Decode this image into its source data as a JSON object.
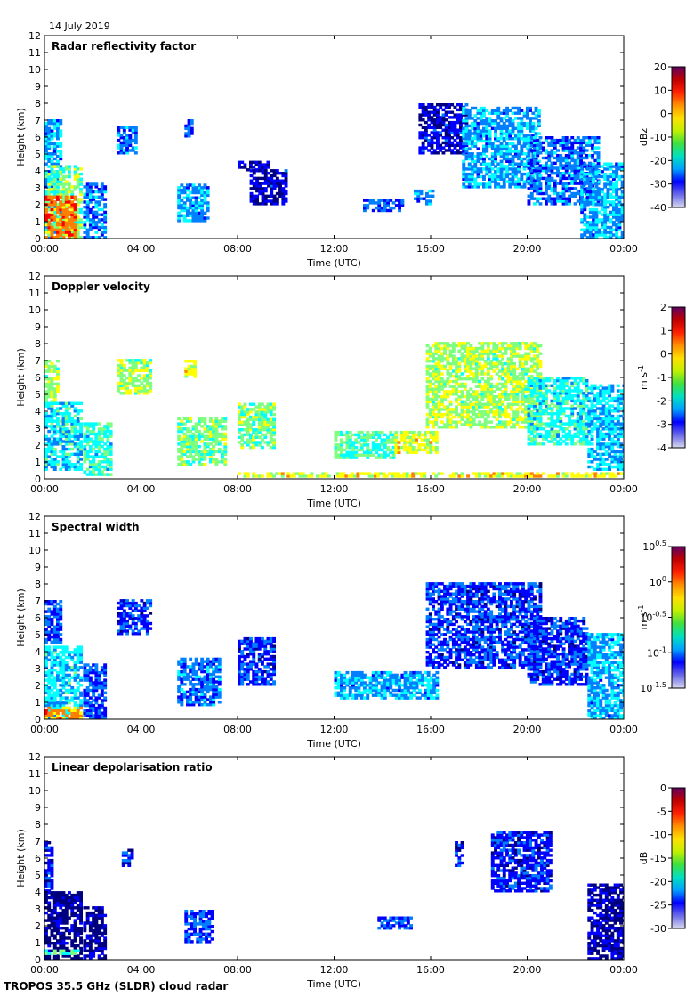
{
  "date_label": "14 July 2019",
  "footer_label": "TROPOS 35.5 GHz (SLDR) cloud radar",
  "colors": {
    "jet": [
      "#00007f",
      "#0000ff",
      "#007fff",
      "#00ffff",
      "#7fff7f",
      "#ffff00",
      "#ff7f00",
      "#ff0000",
      "#7f0000"
    ],
    "colorbar_stops": [
      "#d8d8f0",
      "#6a6ae8",
      "#0000ff",
      "#00a0ff",
      "#00e0c0",
      "#40e040",
      "#c0f000",
      "#ffe000",
      "#ff9000",
      "#ff2000",
      "#c00000",
      "#600060"
    ],
    "haze": "#d0d0d0"
  },
  "chart_data": [
    {
      "type": "heatmap",
      "title": "Radar reflectivity factor",
      "xlabel": "Time (UTC)",
      "ylabel": "Height (km)",
      "xlim": [
        0,
        24
      ],
      "ylim": [
        0,
        12
      ],
      "x_ticks": [
        "00:00",
        "04:00",
        "08:00",
        "12:00",
        "16:00",
        "20:00",
        "00:00"
      ],
      "y_ticks": [
        "0",
        "1",
        "2",
        "3",
        "4",
        "5",
        "6",
        "7",
        "8",
        "9",
        "10",
        "11",
        "12"
      ],
      "colorbar": {
        "label": "dBz",
        "min": -40,
        "max": 20,
        "ticks": [
          "20",
          "10",
          "0",
          "-10",
          "-20",
          "-30",
          "-40"
        ]
      },
      "echoes": [
        {
          "t0": 0.0,
          "t1": 0.7,
          "h0": 0.0,
          "h1": 7.0,
          "v": 0.35
        },
        {
          "t0": 0.0,
          "t1": 1.5,
          "h0": 0.0,
          "h1": 4.3,
          "v": 0.55
        },
        {
          "t0": 0.0,
          "t1": 1.3,
          "h0": 0.0,
          "h1": 2.5,
          "v": 0.85
        },
        {
          "t0": 1.6,
          "t1": 2.5,
          "h0": 0.0,
          "h1": 3.2,
          "v": 0.3
        },
        {
          "t0": 3.0,
          "t1": 3.8,
          "h0": 5.0,
          "h1": 6.6,
          "v": 0.3
        },
        {
          "t0": 5.8,
          "t1": 6.1,
          "h0": 6.0,
          "h1": 7.0,
          "v": 0.25
        },
        {
          "t0": 5.5,
          "t1": 6.8,
          "h0": 1.0,
          "h1": 3.2,
          "v": 0.35
        },
        {
          "t0": 8.0,
          "t1": 9.2,
          "h0": 4.0,
          "h1": 4.5,
          "v": 0.15
        },
        {
          "t0": 8.5,
          "t1": 10.0,
          "h0": 2.0,
          "h1": 4.0,
          "v": 0.15
        },
        {
          "t0": 13.2,
          "t1": 14.8,
          "h0": 1.6,
          "h1": 2.3,
          "v": 0.25
        },
        {
          "t0": 15.3,
          "t1": 16.1,
          "h0": 2.0,
          "h1": 2.8,
          "v": 0.3
        },
        {
          "t0": 15.5,
          "t1": 17.5,
          "h0": 5.0,
          "h1": 8.0,
          "v": 0.15
        },
        {
          "t0": 17.3,
          "t1": 20.5,
          "h0": 3.0,
          "h1": 7.8,
          "v": 0.35
        },
        {
          "t0": 20.0,
          "t1": 23.0,
          "h0": 2.0,
          "h1": 6.0,
          "v": 0.3
        },
        {
          "t0": 22.2,
          "t1": 24.0,
          "h0": 0.0,
          "h1": 4.5,
          "v": 0.35
        }
      ]
    },
    {
      "type": "heatmap",
      "title": "Doppler velocity",
      "xlabel": "Time (UTC)",
      "ylabel": "Height (km)",
      "xlim": [
        0,
        24
      ],
      "ylim": [
        0,
        12
      ],
      "x_ticks": [
        "00:00",
        "04:00",
        "08:00",
        "12:00",
        "16:00",
        "20:00",
        "00:00"
      ],
      "y_ticks": [
        "0",
        "1",
        "2",
        "3",
        "4",
        "5",
        "6",
        "7",
        "8",
        "9",
        "10",
        "11",
        "12"
      ],
      "colorbar": {
        "label": "m s-1",
        "min": -4,
        "max": 2,
        "ticks": [
          "2",
          "1",
          "0",
          "-1",
          "-2",
          "-3",
          "-4"
        ]
      },
      "echoes": [
        {
          "t0": 0.0,
          "t1": 0.6,
          "h0": 4.5,
          "h1": 7.0,
          "v": 0.6
        },
        {
          "t0": 0.0,
          "t1": 1.5,
          "h0": 0.5,
          "h1": 4.5,
          "v": 0.42
        },
        {
          "t0": 1.6,
          "t1": 2.7,
          "h0": 0.2,
          "h1": 3.2,
          "v": 0.48
        },
        {
          "t0": 3.0,
          "t1": 4.4,
          "h0": 5.0,
          "h1": 7.0,
          "v": 0.58
        },
        {
          "t0": 5.8,
          "t1": 6.2,
          "h0": 6.0,
          "h1": 7.0,
          "v": 0.65
        },
        {
          "t0": 5.5,
          "t1": 7.5,
          "h0": 0.8,
          "h1": 3.5,
          "v": 0.55
        },
        {
          "t0": 8.0,
          "t1": 9.5,
          "h0": 1.8,
          "h1": 4.5,
          "v": 0.55
        },
        {
          "t0": 12.0,
          "t1": 14.5,
          "h0": 1.2,
          "h1": 2.8,
          "v": 0.5
        },
        {
          "t0": 14.5,
          "t1": 16.2,
          "h0": 1.5,
          "h1": 2.8,
          "v": 0.65
        },
        {
          "t0": 15.8,
          "t1": 20.5,
          "h0": 3.0,
          "h1": 8.0,
          "v": 0.6
        },
        {
          "t0": 20.0,
          "t1": 22.5,
          "h0": 2.0,
          "h1": 6.0,
          "v": 0.45
        },
        {
          "t0": 22.5,
          "t1": 24.0,
          "h0": 0.5,
          "h1": 5.5,
          "v": 0.38
        },
        {
          "t0": 8.0,
          "t1": 24.0,
          "h0": 0.1,
          "h1": 0.35,
          "v": 0.68
        }
      ]
    },
    {
      "type": "heatmap",
      "title": "Spectral width",
      "xlabel": "Time (UTC)",
      "ylabel": "Height (km)",
      "xlim": [
        0,
        24
      ],
      "ylim": [
        0,
        12
      ],
      "x_ticks": [
        "00:00",
        "04:00",
        "08:00",
        "12:00",
        "16:00",
        "20:00",
        "00:00"
      ],
      "y_ticks": [
        "0",
        "1",
        "2",
        "3",
        "4",
        "5",
        "6",
        "7",
        "8",
        "9",
        "10",
        "11",
        "12"
      ],
      "colorbar": {
        "label": "m s-1",
        "min": -1.5,
        "max": 0.5,
        "ticks": [
          "10^0.5",
          "10^0",
          "10^-0.5",
          "10^-1",
          "10^-1.5"
        ]
      },
      "echoes": [
        {
          "t0": 0.0,
          "t1": 0.7,
          "h0": 4.5,
          "h1": 7.0,
          "v": 0.25
        },
        {
          "t0": 0.0,
          "t1": 1.5,
          "h0": 0.0,
          "h1": 4.3,
          "v": 0.4
        },
        {
          "t0": 0.0,
          "t1": 1.5,
          "h0": 0.0,
          "h1": 0.7,
          "v": 0.78
        },
        {
          "t0": 1.6,
          "t1": 2.5,
          "h0": 0.0,
          "h1": 3.2,
          "v": 0.25
        },
        {
          "t0": 3.0,
          "t1": 4.4,
          "h0": 5.0,
          "h1": 7.0,
          "v": 0.22
        },
        {
          "t0": 5.5,
          "t1": 7.2,
          "h0": 0.8,
          "h1": 3.5,
          "v": 0.3
        },
        {
          "t0": 8.0,
          "t1": 9.5,
          "h0": 2.0,
          "h1": 4.8,
          "v": 0.22
        },
        {
          "t0": 12.0,
          "t1": 16.2,
          "h0": 1.2,
          "h1": 2.8,
          "v": 0.35
        },
        {
          "t0": 15.8,
          "t1": 20.5,
          "h0": 3.0,
          "h1": 8.0,
          "v": 0.22
        },
        {
          "t0": 20.0,
          "t1": 22.5,
          "h0": 2.0,
          "h1": 6.0,
          "v": 0.22
        },
        {
          "t0": 22.5,
          "t1": 24.0,
          "h0": 0.0,
          "h1": 5.0,
          "v": 0.35
        }
      ]
    },
    {
      "type": "heatmap",
      "title": "Linear depolarisation ratio",
      "xlabel": "Time (UTC)",
      "ylabel": "Height (km)",
      "xlim": [
        0,
        24
      ],
      "ylim": [
        0,
        12
      ],
      "x_ticks": [
        "00:00",
        "04:00",
        "08:00",
        "12:00",
        "16:00",
        "20:00",
        "00:00"
      ],
      "y_ticks": [
        "0",
        "1",
        "2",
        "3",
        "4",
        "5",
        "6",
        "7",
        "8",
        "9",
        "10",
        "11",
        "12"
      ],
      "colorbar": {
        "label": "dB",
        "min": -30,
        "max": 0,
        "ticks": [
          "0",
          "-5",
          "-10",
          "-15",
          "-20",
          "-25",
          "-30"
        ]
      },
      "echoes": [
        {
          "t0": 0.0,
          "t1": 0.3,
          "h0": 4.0,
          "h1": 7.0,
          "v": 0.2
        },
        {
          "t0": 0.0,
          "t1": 1.5,
          "h0": 0.0,
          "h1": 4.0,
          "v": 0.08
        },
        {
          "t0": 1.6,
          "t1": 2.5,
          "h0": 0.0,
          "h1": 3.0,
          "v": 0.08
        },
        {
          "t0": 0.0,
          "t1": 1.4,
          "h0": 0.3,
          "h1": 0.6,
          "v": 0.5
        },
        {
          "t0": 3.2,
          "t1": 3.6,
          "h0": 5.5,
          "h1": 6.5,
          "v": 0.2
        },
        {
          "t0": 5.8,
          "t1": 7.0,
          "h0": 1.0,
          "h1": 2.8,
          "v": 0.25
        },
        {
          "t0": 13.8,
          "t1": 15.2,
          "h0": 1.8,
          "h1": 2.5,
          "v": 0.25
        },
        {
          "t0": 17.0,
          "t1": 17.3,
          "h0": 5.5,
          "h1": 7.0,
          "v": 0.2
        },
        {
          "t0": 18.5,
          "t1": 21.0,
          "h0": 4.0,
          "h1": 7.5,
          "v": 0.2
        },
        {
          "t0": 22.5,
          "t1": 24.0,
          "h0": 0.0,
          "h1": 4.5,
          "v": 0.1
        }
      ]
    }
  ]
}
